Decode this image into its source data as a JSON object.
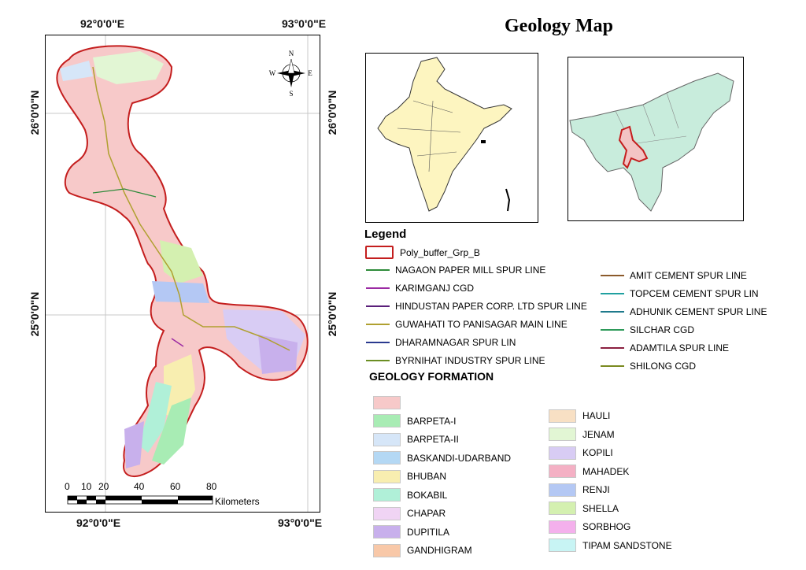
{
  "title": "Geology Map",
  "coords": {
    "lon_left_top": "92°0'0\"E",
    "lon_right_top": "93°0'0\"E",
    "lon_left_bottom": "92°0'0\"E",
    "lon_right_bottom": "93°0'0\"E",
    "lat_upper_left": "26°0'0\"N",
    "lat_upper_right": "26°0'0\"N",
    "lat_lower_left": "25°0'0\"N",
    "lat_lower_right": "25°0'0\"N"
  },
  "north_arrow": {
    "n": "N",
    "s": "S",
    "e": "E",
    "w": "W"
  },
  "scale_bar": {
    "ticks": [
      "0",
      "10",
      "20",
      "40",
      "60",
      "80"
    ],
    "unit": "Kilometers"
  },
  "legend": {
    "title": "Legend",
    "buffer_label": "Poly_buffer_Grp_B",
    "buffer_color": "#d22020",
    "lines_left": [
      {
        "label": "NAGAON PAPER MILL SPUR LINE",
        "color": "#2e8b3a"
      },
      {
        "label": "KARIMGANJ CGD",
        "color": "#9b2aa3"
      },
      {
        "label": "HINDUSTAN PAPER CORP. LTD SPUR LINE",
        "color": "#5a1f7a"
      },
      {
        "label": "GUWAHATI TO PANISAGAR MAIN LINE",
        "color": "#b0a030"
      },
      {
        "label": "DHARAMNAGAR SPUR LIN",
        "color": "#2a3a8f"
      },
      {
        "label": "BYRNIHAT INDUSTRY SPUR LINE",
        "color": "#6b8e23"
      }
    ],
    "lines_right": [
      {
        "label": "AMIT CEMENT SPUR LINE",
        "color": "#8b5a2b"
      },
      {
        "label": "TOPCEM CEMENT SPUR LIN",
        "color": "#20a0a0"
      },
      {
        "label": "ADHUNIK CEMENT SPUR LINE",
        "color": "#1f7a8c"
      },
      {
        "label": "SILCHAR CGD",
        "color": "#2e9a5a"
      },
      {
        "label": "ADAMTILA SPUR LINE",
        "color": "#8b2040"
      },
      {
        "label": "SHILONG CGD",
        "color": "#7a8a20"
      }
    ]
  },
  "geology": {
    "title": "GEOLOGY FORMATION",
    "left": [
      {
        "label": "",
        "color": "#f7c9c9"
      },
      {
        "label": "BARPETA-I",
        "color": "#a8ecb4"
      },
      {
        "label": "BARPETA-II",
        "color": "#d6e6f8"
      },
      {
        "label": "BASKANDI-UDARBAND",
        "color": "#b4d8f4"
      },
      {
        "label": "BHUBAN",
        "color": "#f8eeb0"
      },
      {
        "label": "BOKABIL",
        "color": "#b0f0d8"
      },
      {
        "label": "CHAPAR",
        "color": "#f0d4f4"
      },
      {
        "label": "DUPITILA",
        "color": "#c8b0ec"
      },
      {
        "label": "GANDHIGRAM",
        "color": "#f8c8a8"
      }
    ],
    "right": [
      {
        "label": "HAULI",
        "color": "#f8e0c4"
      },
      {
        "label": "JENAM",
        "color": "#e2f6d4"
      },
      {
        "label": "KOPILI",
        "color": "#d8ccf4"
      },
      {
        "label": "MAHADEK",
        "color": "#f4b0c4"
      },
      {
        "label": "RENJI",
        "color": "#b4c8f4"
      },
      {
        "label": "SHELLA",
        "color": "#d4f0b0"
      },
      {
        "label": "SORBHOG",
        "color": "#f4b0ec"
      },
      {
        "label": "TIPAM SANDSTONE",
        "color": "#c8f4f4"
      }
    ]
  }
}
